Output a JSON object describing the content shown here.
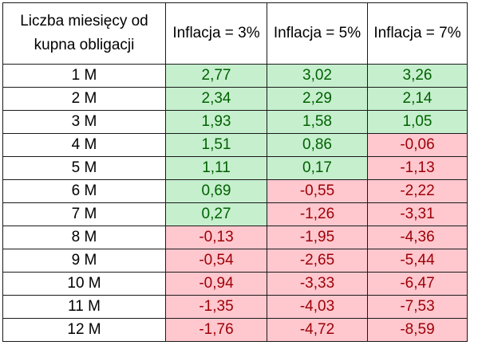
{
  "table": {
    "headers": [
      "Liczba miesięcy od kupna obligacji",
      "Inflacja = 3%",
      "Inflacja = 5%",
      "Inflacja = 7%"
    ],
    "rows": [
      {
        "month": "1 M",
        "values": [
          "2,77",
          "3,02",
          "3,26"
        ]
      },
      {
        "month": "2 M",
        "values": [
          "2,34",
          "2,29",
          "2,14"
        ]
      },
      {
        "month": "3 M",
        "values": [
          "1,93",
          "1,58",
          "1,05"
        ]
      },
      {
        "month": "4 M",
        "values": [
          "1,51",
          "0,86",
          "-0,06"
        ]
      },
      {
        "month": "5 M",
        "values": [
          "1,11",
          "0,17",
          "-1,13"
        ]
      },
      {
        "month": "6 M",
        "values": [
          "0,69",
          "-0,55",
          "-2,22"
        ]
      },
      {
        "month": "7 M",
        "values": [
          "0,27",
          "-1,26",
          "-3,31"
        ]
      },
      {
        "month": "8 M",
        "values": [
          "-0,13",
          "-1,95",
          "-4,36"
        ]
      },
      {
        "month": "9 M",
        "values": [
          "-0,54",
          "-2,65",
          "-5,44"
        ]
      },
      {
        "month": "10 M",
        "values": [
          "-0,94",
          "-3,33",
          "-6,47"
        ]
      },
      {
        "month": "11 M",
        "values": [
          "-1,35",
          "-4,03",
          "-7,53"
        ]
      },
      {
        "month": "12 M",
        "values": [
          "-1,76",
          "-4,72",
          "-8,59"
        ]
      }
    ]
  },
  "colors": {
    "positive_fill": "#c6efce",
    "positive_text": "#006100",
    "negative_fill": "#ffc7ce",
    "negative_text": "#9c0006",
    "border": "#1a1a1a"
  }
}
